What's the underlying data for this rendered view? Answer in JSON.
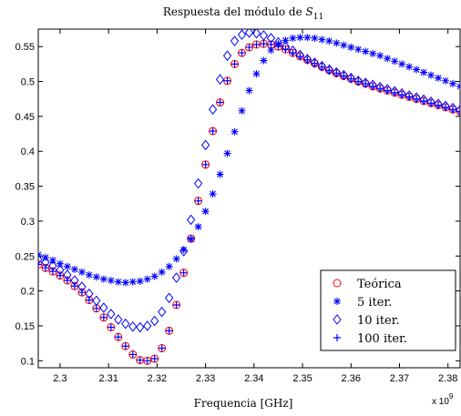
{
  "chart_data": {
    "type": "scatter",
    "title_prefix": "Respuesta del módulo de ",
    "title_var": "S",
    "title_sub": "11",
    "xlabel": "Frequencia [GHz]",
    "ylabel": "",
    "x_exponent_base": "x 10",
    "x_exponent_power": "9",
    "xlim": [
      2.2955,
      2.3825
    ],
    "ylim": [
      0.09,
      0.575
    ],
    "xticks": [
      2.3,
      2.31,
      2.32,
      2.33,
      2.34,
      2.35,
      2.36,
      2.37,
      2.38
    ],
    "xtick_labels": [
      "2.3",
      "2.31",
      "2.32",
      "2.33",
      "2.34",
      "2.35",
      "2.36",
      "2.37",
      "2.38"
    ],
    "yticks": [
      0.1,
      0.15,
      0.2,
      0.25,
      0.3,
      0.35,
      0.4,
      0.45,
      0.5,
      0.55
    ],
    "ytick_labels": [
      "0.1",
      "0.15",
      "0.2",
      "0.25",
      "0.3",
      "0.35",
      "0.4",
      "0.45",
      "0.5",
      "0.55"
    ],
    "grid": false,
    "legend_position": "bottom-right",
    "x": [
      2.2955,
      2.297,
      2.2985,
      2.3,
      2.3015,
      2.303,
      2.3045,
      2.306,
      2.3075,
      2.309,
      2.3105,
      2.312,
      2.3135,
      2.315,
      2.3165,
      2.318,
      2.3195,
      2.321,
      2.3225,
      2.324,
      2.3255,
      2.327,
      2.3285,
      2.33,
      2.3315,
      2.333,
      2.3345,
      2.336,
      2.3375,
      2.339,
      2.3405,
      2.342,
      2.3435,
      2.345,
      2.3465,
      2.348,
      2.3495,
      2.351,
      2.3525,
      2.354,
      2.3555,
      2.357,
      2.3585,
      2.36,
      2.3615,
      2.363,
      2.3645,
      2.366,
      2.3675,
      2.369,
      2.3705,
      2.372,
      2.3735,
      2.375,
      2.3765,
      2.378,
      2.3795,
      2.381,
      2.3825
    ],
    "series": [
      {
        "name": "Teórica",
        "marker": "circle",
        "color": "#ff0000",
        "values": [
          0.238,
          0.233,
          0.228,
          0.222,
          0.215,
          0.207,
          0.198,
          0.187,
          0.175,
          0.162,
          0.148,
          0.134,
          0.121,
          0.109,
          0.101,
          0.1,
          0.103,
          0.118,
          0.143,
          0.18,
          0.226,
          0.275,
          0.329,
          0.381,
          0.429,
          0.47,
          0.501,
          0.525,
          0.541,
          0.549,
          0.553,
          0.554,
          0.553,
          0.55,
          0.546,
          0.541,
          0.536,
          0.531,
          0.526,
          0.521,
          0.516,
          0.512,
          0.508,
          0.504,
          0.5,
          0.497,
          0.493,
          0.49,
          0.487,
          0.484,
          0.481,
          0.478,
          0.475,
          0.472,
          0.469,
          0.466,
          0.463,
          0.46,
          0.457
        ]
      },
      {
        "name": "5 iter.",
        "marker": "star",
        "color": "#0000ff",
        "values": [
          0.252,
          0.248,
          0.244,
          0.239,
          0.235,
          0.231,
          0.227,
          0.223,
          0.22,
          0.217,
          0.215,
          0.213,
          0.212,
          0.213,
          0.214,
          0.217,
          0.221,
          0.227,
          0.235,
          0.246,
          0.259,
          0.274,
          0.292,
          0.314,
          0.339,
          0.367,
          0.397,
          0.428,
          0.458,
          0.487,
          0.511,
          0.53,
          0.545,
          0.554,
          0.559,
          0.562,
          0.563,
          0.563,
          0.562,
          0.56,
          0.558,
          0.555,
          0.552,
          0.549,
          0.546,
          0.543,
          0.54,
          0.537,
          0.533,
          0.529,
          0.525,
          0.521,
          0.517,
          0.513,
          0.509,
          0.505,
          0.501,
          0.497,
          0.493
        ]
      },
      {
        "name": "10 iter.",
        "marker": "diamond",
        "color": "#0000ff",
        "values": [
          0.245,
          0.241,
          0.236,
          0.23,
          0.223,
          0.215,
          0.206,
          0.196,
          0.186,
          0.176,
          0.167,
          0.159,
          0.153,
          0.149,
          0.148,
          0.15,
          0.157,
          0.17,
          0.19,
          0.219,
          0.257,
          0.302,
          0.354,
          0.409,
          0.46,
          0.503,
          0.537,
          0.558,
          0.567,
          0.57,
          0.569,
          0.566,
          0.562,
          0.556,
          0.55,
          0.544,
          0.538,
          0.532,
          0.527,
          0.522,
          0.517,
          0.513,
          0.509,
          0.505,
          0.501,
          0.498,
          0.495,
          0.492,
          0.489,
          0.486,
          0.483,
          0.48,
          0.477,
          0.474,
          0.471,
          0.468,
          0.465,
          0.462,
          0.459
        ]
      },
      {
        "name": "100 iter.",
        "marker": "plus",
        "color": "#0000ff",
        "values": [
          0.238,
          0.233,
          0.228,
          0.222,
          0.215,
          0.207,
          0.198,
          0.187,
          0.175,
          0.162,
          0.148,
          0.134,
          0.121,
          0.109,
          0.101,
          0.1,
          0.103,
          0.118,
          0.143,
          0.18,
          0.226,
          0.275,
          0.329,
          0.381,
          0.429,
          0.47,
          0.501,
          0.525,
          0.541,
          0.549,
          0.553,
          0.554,
          0.553,
          0.55,
          0.546,
          0.541,
          0.536,
          0.531,
          0.526,
          0.521,
          0.516,
          0.512,
          0.508,
          0.504,
          0.5,
          0.497,
          0.493,
          0.49,
          0.487,
          0.484,
          0.481,
          0.478,
          0.475,
          0.472,
          0.469,
          0.466,
          0.463,
          0.46,
          0.457
        ]
      }
    ]
  }
}
